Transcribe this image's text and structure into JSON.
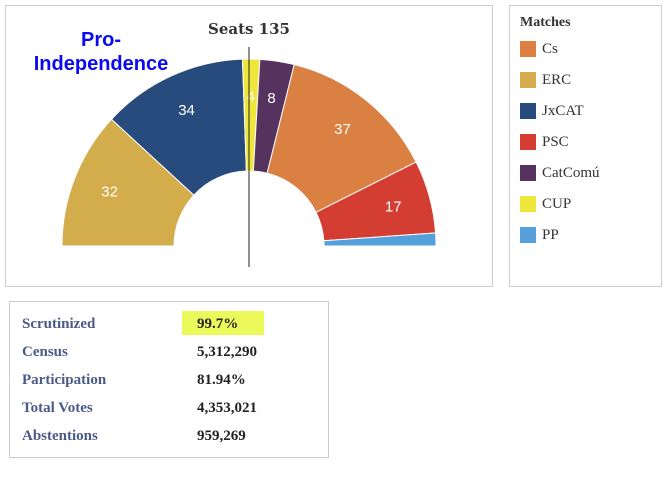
{
  "chart_data": {
    "type": "pie",
    "subtype": "semicircle-parliament",
    "title": "Seats 135",
    "annotation": "Pro-Independence",
    "total": 135,
    "slices": [
      {
        "party": "ERC",
        "seats": 32,
        "color": "#d3ac4b",
        "label": "32"
      },
      {
        "party": "JxCAT",
        "seats": 34,
        "color": "#284b7e",
        "label": "34"
      },
      {
        "party": "CUP",
        "seats": 4,
        "color": "#efe63c",
        "label": "4"
      },
      {
        "party": "CatComú",
        "seats": 8,
        "color": "#55335e",
        "label": "8"
      },
      {
        "party": "Cs",
        "seats": 37,
        "color": "#da8043",
        "label": "37"
      },
      {
        "party": "PSC",
        "seats": 17,
        "color": "#d43d31",
        "label": "17"
      },
      {
        "party": "PP",
        "seats": 3,
        "color": "#55a0da",
        "label": ""
      }
    ]
  },
  "legend": {
    "title": "Matches",
    "items": [
      {
        "label": "Cs",
        "color": "#da8043"
      },
      {
        "label": "ERC",
        "color": "#d3ac4b"
      },
      {
        "label": "JxCAT",
        "color": "#284b7e"
      },
      {
        "label": "PSC",
        "color": "#d43d31"
      },
      {
        "label": "CatComú",
        "color": "#55335e"
      },
      {
        "label": "CUP",
        "color": "#efe63c"
      },
      {
        "label": "PP",
        "color": "#55a0da"
      }
    ]
  },
  "stats": [
    {
      "label": "Scrutinized",
      "value": "99.7%"
    },
    {
      "label": "Census",
      "value": "5,312,290"
    },
    {
      "label": "Participation",
      "value": "81.94%"
    },
    {
      "label": "Total Votes",
      "value": "4,353,021"
    },
    {
      "label": "Abstentions",
      "value": "959,269"
    }
  ]
}
